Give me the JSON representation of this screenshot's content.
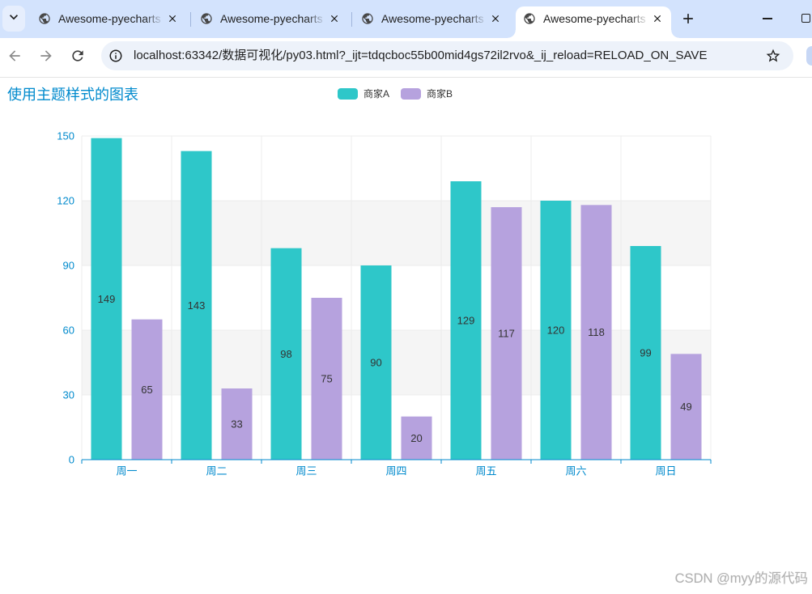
{
  "browser": {
    "tabs": [
      {
        "title": "Awesome-pyecharts",
        "active": false
      },
      {
        "title": "Awesome-pyecharts",
        "active": false
      },
      {
        "title": "Awesome-pyecharts",
        "active": false
      },
      {
        "title": "Awesome-pyecharts",
        "active": true
      }
    ],
    "url": "localhost:63342/数据可视化/py03.html?_ijt=tdqcboc55b00mid4gs72il2rvo&_ij_reload=RELOAD_ON_SAVE",
    "icons": {
      "tab_search": "chevron-down-icon",
      "favicon": "globe-icon",
      "tab_close": "close-icon",
      "new_tab": "plus-icon",
      "minimize": "minimize-icon",
      "maximize": "maximize-icon",
      "back": "arrow-left-icon",
      "forward": "arrow-right-icon",
      "reload": "reload-icon",
      "site_info": "info-icon",
      "bookmark": "star-icon"
    }
  },
  "colors": {
    "tabstrip": "#d3e3fd",
    "omnibox": "#edf2fa",
    "axis": "#008acd",
    "title": "#008acd",
    "grid": "#ececec",
    "split_area": "#ffffff",
    "split_area_alt": "#f5f5f5",
    "label": "#333333"
  },
  "chart_data": {
    "type": "bar",
    "title": "使用主题样式的图表",
    "xlabel": "",
    "ylabel": "",
    "categories": [
      "周一",
      "周二",
      "周三",
      "周四",
      "周五",
      "周六",
      "周日"
    ],
    "series": [
      {
        "name": "商家A",
        "color": "#2ec7c9",
        "values": [
          149,
          143,
          98,
          90,
          129,
          120,
          99
        ]
      },
      {
        "name": "商家B",
        "color": "#b6a2de",
        "values": [
          65,
          33,
          75,
          20,
          117,
          118,
          49
        ]
      }
    ],
    "ylim": [
      0,
      150
    ],
    "yticks": [
      0,
      30,
      60,
      90,
      120,
      150
    ],
    "grid": true,
    "legend_position": "top-center"
  },
  "watermark": "CSDN @myy的源代码"
}
